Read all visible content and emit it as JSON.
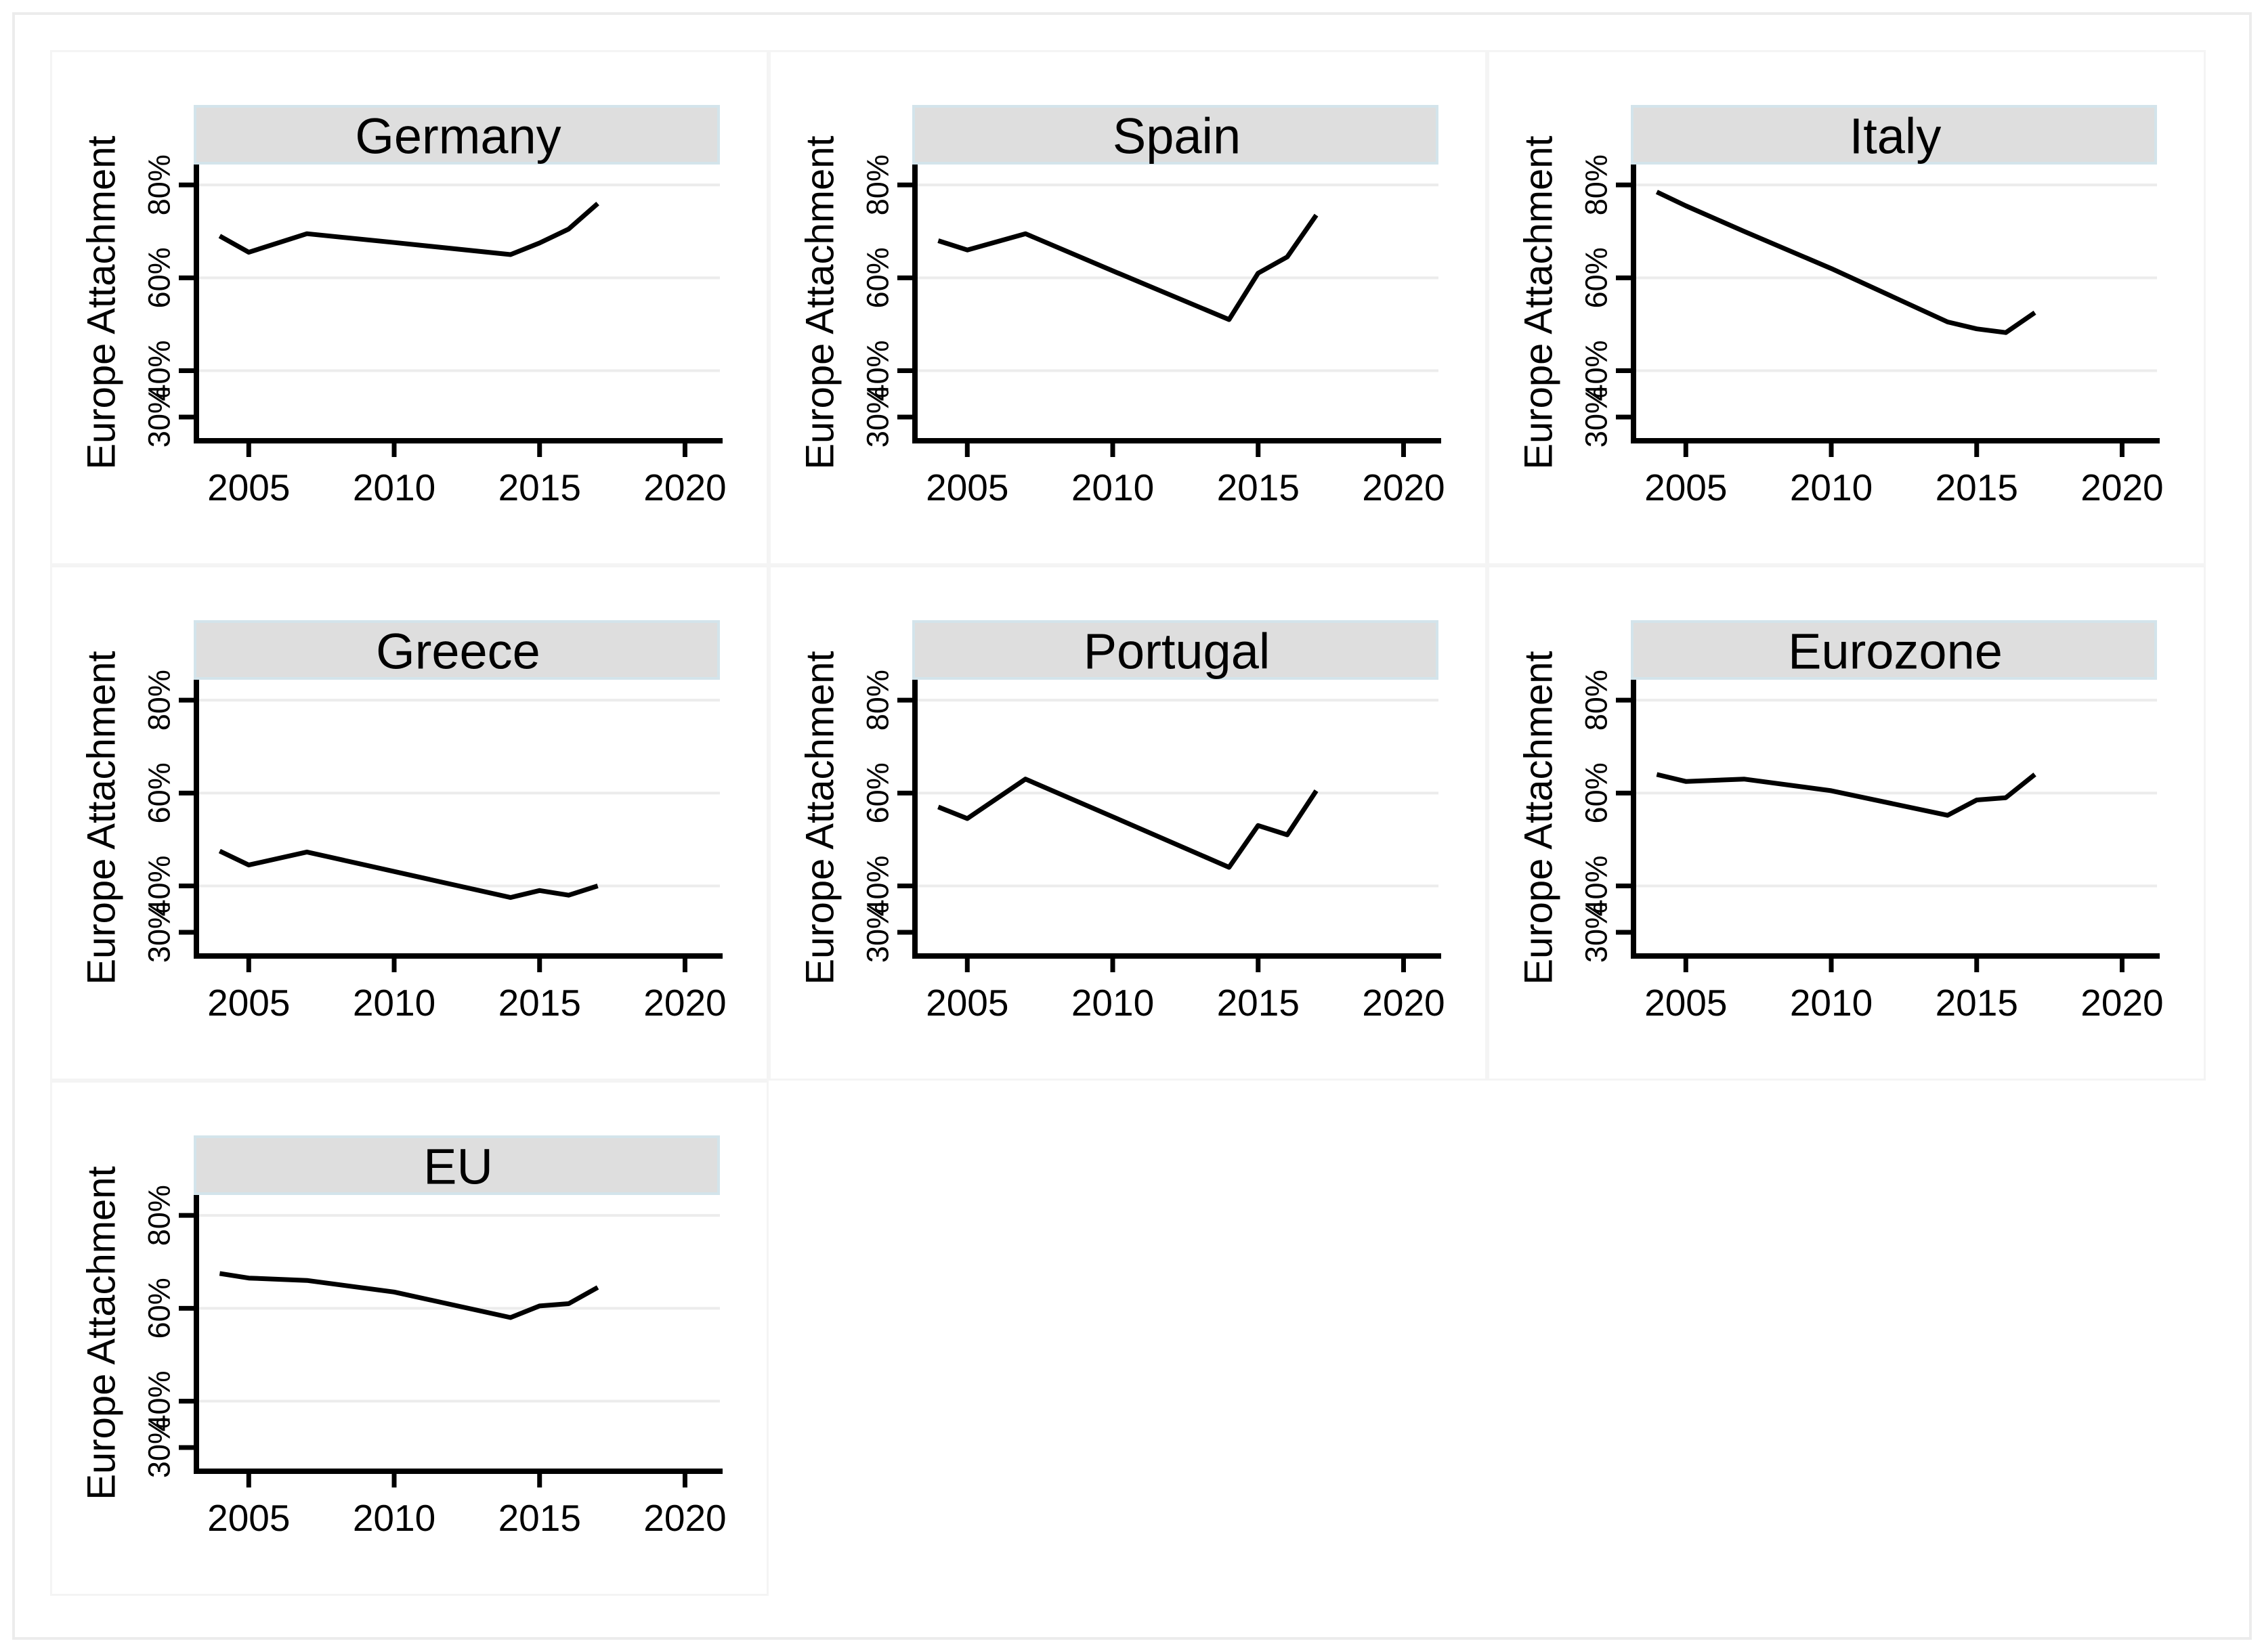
{
  "figure": {
    "y_axis_title": "Europe Attachment",
    "colors": {
      "background": "#ffffff",
      "outer_border": "#ececec",
      "cell_border": "#f4f4f4",
      "title_band_fill": "#dedede",
      "title_band_border": "#d3e4eb",
      "gridline": "#ececec",
      "axis": "#000000",
      "series_line": "#000000",
      "text": "#000000"
    }
  },
  "axis": {
    "y_title": "Europe Attachment",
    "y_ticks": [
      {
        "value": 30,
        "label": "30%"
      },
      {
        "value": 40,
        "label": "40%"
      },
      {
        "value": 60,
        "label": "60%"
      },
      {
        "value": 80,
        "label": "80%"
      }
    ],
    "grid_values": [
      40,
      60,
      80
    ],
    "x_ticks": [
      {
        "value": 2005,
        "label": "2005"
      },
      {
        "value": 2010,
        "label": "2010"
      },
      {
        "value": 2015,
        "label": "2015"
      },
      {
        "value": 2020,
        "label": "2020"
      }
    ],
    "x_domain": [
      2003.2,
      2021.2
    ],
    "y_domain": [
      24.9,
      84.4
    ],
    "grid_on": "horizontal-only"
  },
  "chart_data": [
    {
      "type": "line",
      "title": "Germany",
      "xlabel": "",
      "ylabel": "Europe Attachment",
      "xlim": [
        2003.2,
        2021.2
      ],
      "ylim": [
        24.9,
        84.4
      ],
      "x": [
        2004,
        2005,
        2007,
        2010,
        2014,
        2015,
        2016,
        2017
      ],
      "y": [
        69,
        65.5,
        69.5,
        67.6,
        65,
        67.5,
        70.5,
        76
      ]
    },
    {
      "type": "line",
      "title": "Spain",
      "xlabel": "",
      "ylabel": "Europe Attachment",
      "xlim": [
        2003.2,
        2021.2
      ],
      "ylim": [
        24.9,
        84.4
      ],
      "x": [
        2004,
        2005,
        2007,
        2010,
        2014,
        2015,
        2016,
        2017
      ],
      "y": [
        68,
        66,
        69.5,
        61.5,
        51,
        61,
        64.5,
        73.5
      ]
    },
    {
      "type": "line",
      "title": "Italy",
      "xlabel": "",
      "ylabel": "Europe Attachment",
      "xlim": [
        2003.2,
        2021.2
      ],
      "ylim": [
        24.9,
        84.4
      ],
      "x": [
        2004,
        2005,
        2007,
        2010,
        2014,
        2015,
        2016,
        2017
      ],
      "y": [
        78.5,
        75.5,
        70,
        62,
        50.5,
        49,
        48.2,
        52.5
      ]
    },
    {
      "type": "line",
      "title": "Greece",
      "xlabel": "",
      "ylabel": "Europe Attachment",
      "xlim": [
        2003.2,
        2021.2
      ],
      "ylim": [
        24.9,
        84.4
      ],
      "x": [
        2004,
        2005,
        2007,
        2010,
        2014,
        2015,
        2016,
        2017
      ],
      "y": [
        47.5,
        44.5,
        47.3,
        43.1,
        37.5,
        39,
        38,
        40
      ]
    },
    {
      "type": "line",
      "title": "Portugal",
      "xlabel": "",
      "ylabel": "Europe Attachment",
      "xlim": [
        2003.2,
        2021.2
      ],
      "ylim": [
        24.9,
        84.4
      ],
      "x": [
        2004,
        2005,
        2007,
        2010,
        2014,
        2015,
        2016,
        2017
      ],
      "y": [
        57,
        54.5,
        63,
        54.9,
        44,
        53,
        51,
        60.5
      ]
    },
    {
      "type": "line",
      "title": "Eurozone",
      "xlabel": "",
      "ylabel": "Europe Attachment",
      "xlim": [
        2003.2,
        2021.2
      ],
      "ylim": [
        24.9,
        84.4
      ],
      "x": [
        2004,
        2005,
        2007,
        2010,
        2014,
        2015,
        2016,
        2017
      ],
      "y": [
        64,
        62.5,
        63,
        60.5,
        55.2,
        58.5,
        59,
        64
      ]
    },
    {
      "type": "line",
      "title": "EU",
      "xlabel": "",
      "ylabel": "Europe Attachment",
      "xlim": [
        2003.2,
        2021.2
      ],
      "ylim": [
        24.9,
        84.4
      ],
      "x": [
        2004,
        2005,
        2007,
        2010,
        2014,
        2015,
        2016,
        2017
      ],
      "y": [
        67.5,
        66.5,
        66,
        63.5,
        58,
        60.5,
        61,
        64.5
      ]
    }
  ]
}
